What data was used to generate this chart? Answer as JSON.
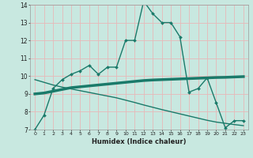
{
  "xlabel": "Humidex (Indice chaleur)",
  "xlim": [
    -0.5,
    23.5
  ],
  "ylim": [
    7,
    14
  ],
  "xticks": [
    0,
    1,
    2,
    3,
    4,
    5,
    6,
    7,
    8,
    9,
    10,
    11,
    12,
    13,
    14,
    15,
    16,
    17,
    18,
    19,
    20,
    21,
    22,
    23
  ],
  "yticks": [
    7,
    8,
    9,
    10,
    11,
    12,
    13,
    14
  ],
  "bg_color": "#c8e8e0",
  "line_color": "#1a7a6a",
  "grid_color": "#e8b8b8",
  "line1_x": [
    0,
    1,
    2,
    3,
    4,
    5,
    6,
    7,
    8,
    9,
    10,
    11,
    12,
    13,
    14,
    15,
    16,
    17,
    18,
    19,
    20,
    21,
    22,
    23
  ],
  "line1_y": [
    7.0,
    7.8,
    9.3,
    9.8,
    10.1,
    10.3,
    10.6,
    10.1,
    10.5,
    10.5,
    12.0,
    12.0,
    14.2,
    13.5,
    13.0,
    13.0,
    12.2,
    9.1,
    9.3,
    9.9,
    8.5,
    7.1,
    7.5,
    7.5
  ],
  "line2_x": [
    0,
    1,
    2,
    3,
    4,
    5,
    6,
    7,
    8,
    9,
    10,
    11,
    12,
    13,
    14,
    15,
    16,
    17,
    18,
    19,
    20,
    21,
    22,
    23
  ],
  "line2_y": [
    9.0,
    9.05,
    9.15,
    9.25,
    9.35,
    9.4,
    9.45,
    9.5,
    9.55,
    9.6,
    9.65,
    9.7,
    9.75,
    9.78,
    9.8,
    9.82,
    9.84,
    9.86,
    9.88,
    9.9,
    9.92,
    9.93,
    9.95,
    9.97
  ],
  "line3_x": [
    0,
    1,
    2,
    3,
    4,
    5,
    6,
    7,
    8,
    9,
    10,
    11,
    12,
    13,
    14,
    15,
    16,
    17,
    18,
    19,
    20,
    21,
    22,
    23
  ],
  "line3_y": [
    9.8,
    9.65,
    9.5,
    9.38,
    9.28,
    9.18,
    9.08,
    8.98,
    8.88,
    8.78,
    8.65,
    8.52,
    8.38,
    8.25,
    8.12,
    8.0,
    7.88,
    7.76,
    7.64,
    7.52,
    7.42,
    7.35,
    7.28,
    7.22
  ]
}
